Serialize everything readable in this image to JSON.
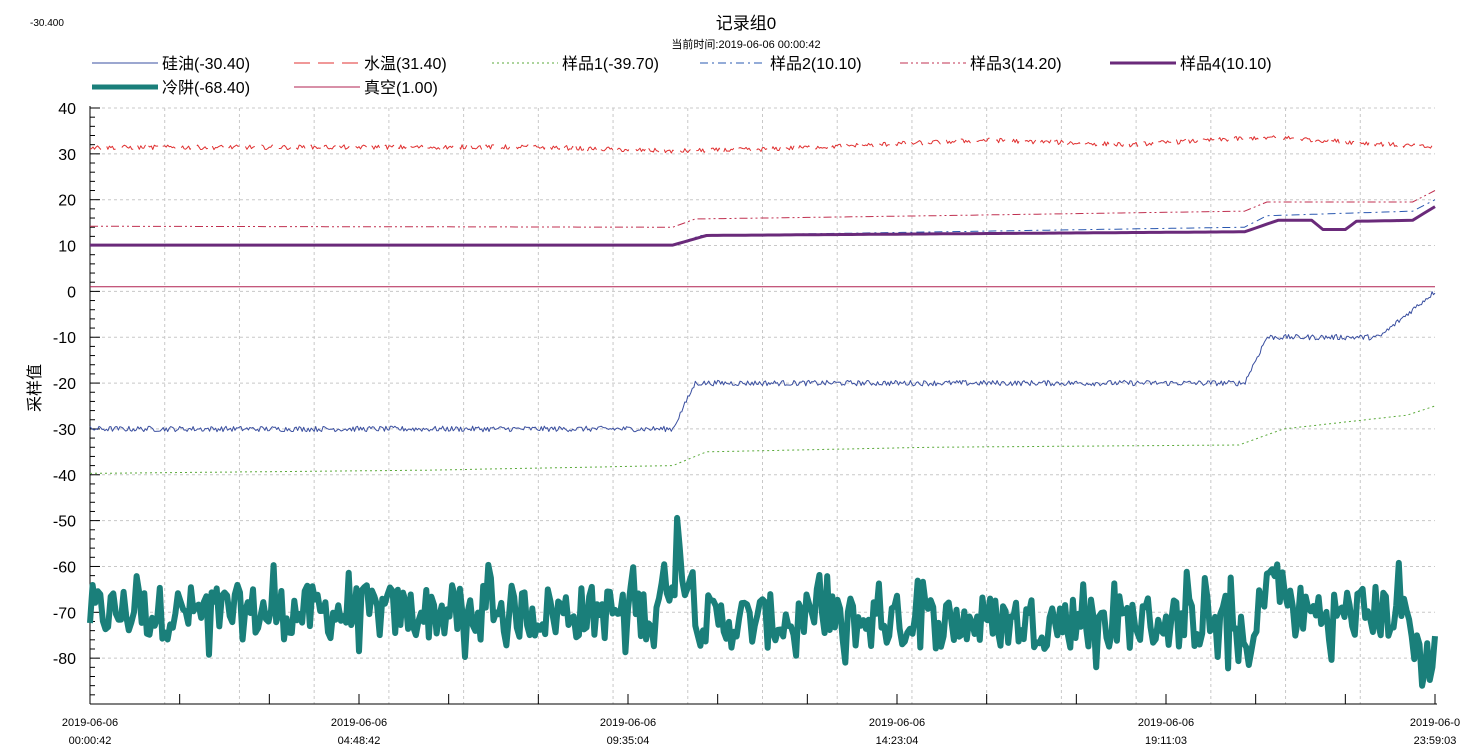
{
  "corner_value": "-30.400",
  "chart_data": {
    "type": "line",
    "title": "记录组0",
    "subtitle": "当前时间:2019-06-06  00:00:42",
    "xlabel": "",
    "ylabel": "采样值",
    "ylim": [
      -90,
      40
    ],
    "yticks": [
      40,
      30,
      20,
      10,
      0,
      -10,
      -20,
      -30,
      -40,
      -50,
      -60,
      -70,
      -80
    ],
    "x_range": [
      "2019-06-06 00:00:42",
      "2019-06-06 23:59:03"
    ],
    "xticks": [
      {
        "date": "2019-06-06",
        "time": "00:00:42"
      },
      {
        "date": "2019-06-06",
        "time": "04:48:42"
      },
      {
        "date": "2019-06-06",
        "time": "09:35:04"
      },
      {
        "date": "2019-06-06",
        "time": "14:23:04"
      },
      {
        "date": "2019-06-06",
        "time": "19:11:03"
      },
      {
        "date": "2019-06-0",
        "time": "23:59:03"
      }
    ],
    "grid": true,
    "legend_position": "top",
    "series": [
      {
        "name": "硅油(-30.40)",
        "color": "#3a4fa0",
        "style": "solid-thin",
        "x_hours": [
          0,
          10.4,
          10.8,
          20.6,
          21.0,
          23.0,
          24.0
        ],
        "values": [
          -30,
          -30,
          -20,
          -20,
          -10,
          -10,
          0
        ],
        "noise": 0.6
      },
      {
        "name": "水温(31.40)",
        "color": "#e03030",
        "style": "longdash",
        "x_hours": [
          0,
          8.0,
          10.4,
          12.0,
          16.0,
          18.5,
          20.8,
          21.3,
          24.0
        ],
        "values": [
          31.4,
          31.5,
          30.6,
          31,
          33,
          32,
          33.5,
          33.5,
          31.4
        ],
        "noise": 0.5
      },
      {
        "name": "样品1(-39.70)",
        "color": "#5aaa3a",
        "style": "dotted",
        "x_hours": [
          0,
          6.0,
          10.4,
          11.0,
          15.0,
          20.5,
          21.3,
          23.5,
          24.0
        ],
        "values": [
          -39.7,
          -39,
          -38,
          -35,
          -34,
          -33.5,
          -30,
          -27,
          -25
        ],
        "noise": 0
      },
      {
        "name": "样品2(10.10)",
        "color": "#2a58b0",
        "style": "dashdot",
        "x_hours": [
          0,
          10.4,
          10.9,
          20.6,
          21.0,
          23.6,
          24.0
        ],
        "values": [
          10.1,
          10.1,
          12.2,
          14,
          16.5,
          17.5,
          20
        ],
        "noise": 0
      },
      {
        "name": "样品3(14.20)",
        "color": "#c03050",
        "style": "dashdotdot",
        "x_hours": [
          0,
          10.4,
          10.8,
          15.0,
          20.6,
          21.0,
          23.6,
          24.0
        ],
        "values": [
          14.2,
          14,
          15.8,
          16.5,
          17.5,
          19.5,
          19.5,
          22
        ],
        "noise": 0
      },
      {
        "name": "样品4(10.10)",
        "color": "#6a2a7a",
        "style": "solid-bold",
        "x_hours": [
          0,
          10.4,
          11.0,
          20.6,
          21.2,
          21.8,
          22.0,
          22.4,
          22.6,
          23.6,
          24.0
        ],
        "values": [
          10.1,
          10.1,
          12.2,
          13,
          15.5,
          15.5,
          13.5,
          13.5,
          15.3,
          15.5,
          18.5
        ],
        "noise": 0
      },
      {
        "name": "冷阱(-68.40)",
        "color": "#1a7f7a",
        "style": "solid-thick",
        "x_hours": [
          0,
          10.0,
          10.6,
          10.9,
          20.4,
          20.7,
          21.0,
          21.5,
          23.5,
          23.8,
          24.0
        ],
        "values": [
          -70,
          -70,
          -57,
          -72,
          -72,
          -82,
          -60,
          -70,
          -70,
          -83,
          -77
        ],
        "noise": 6
      },
      {
        "name": "真空(1.00)",
        "color": "#b02050",
        "style": "solid-thin",
        "x_hours": [
          0,
          24.0
        ],
        "values": [
          1.0,
          1.0
        ],
        "noise": 0
      }
    ]
  }
}
